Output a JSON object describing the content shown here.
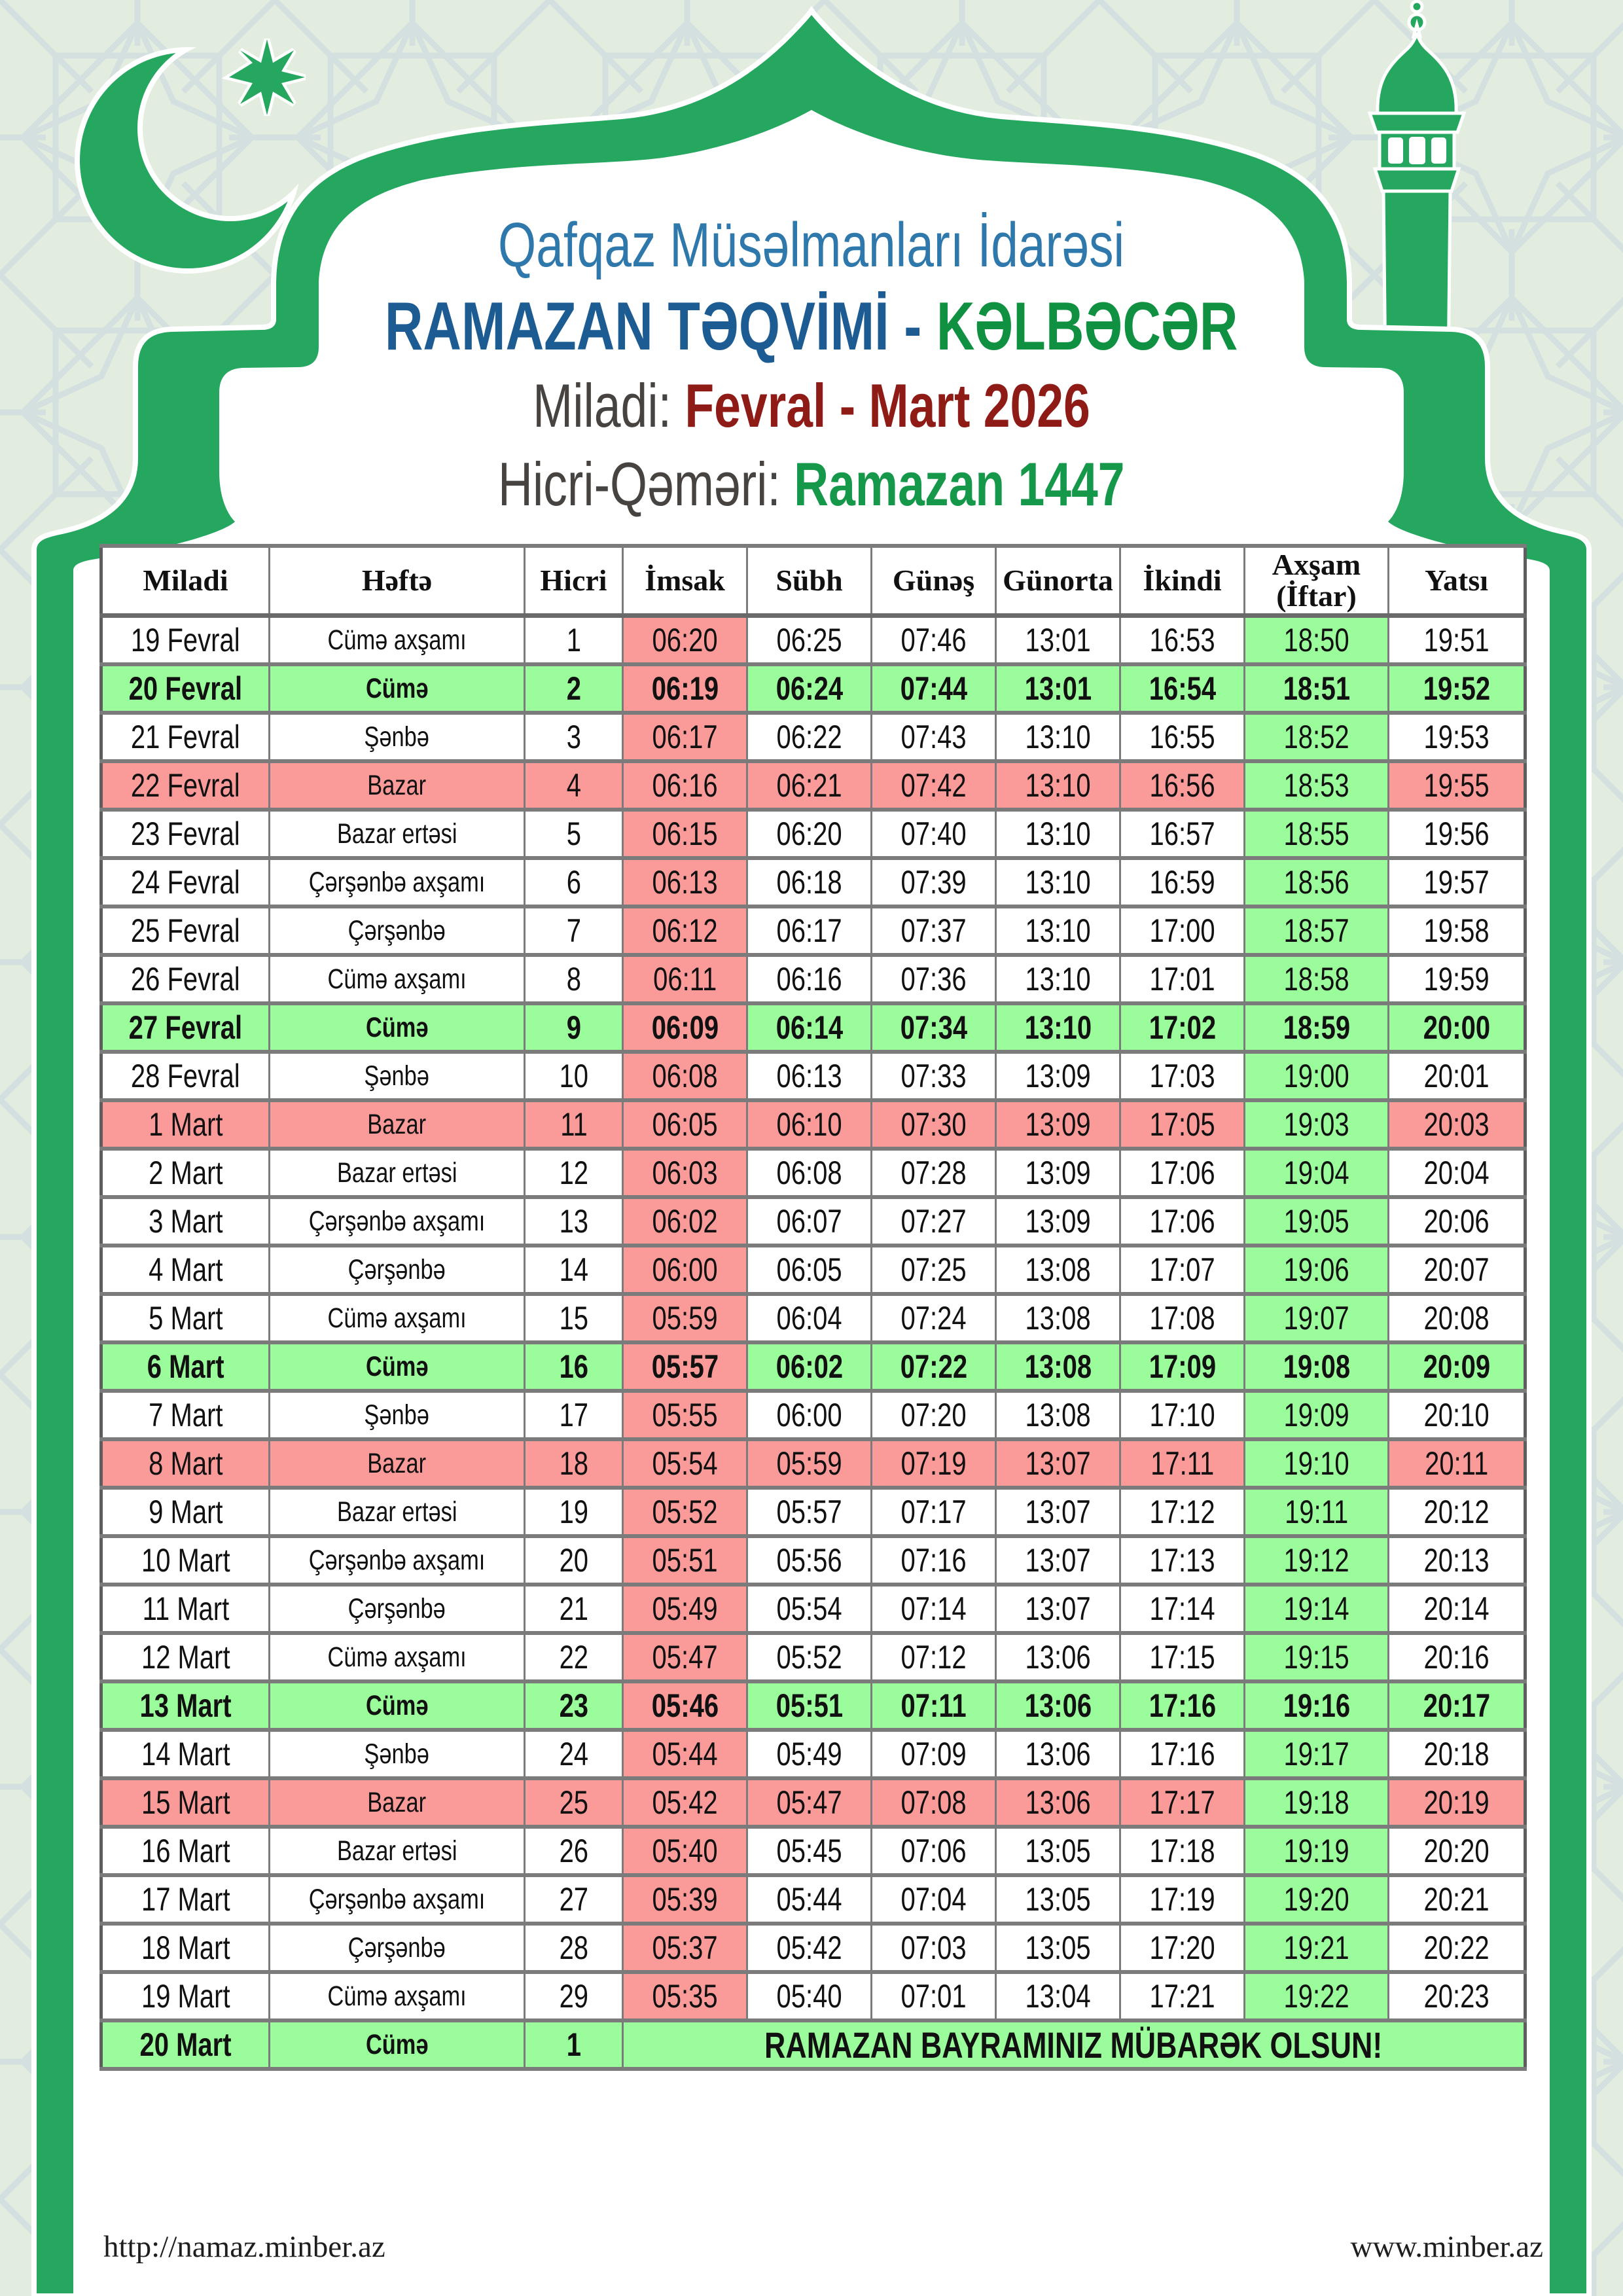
{
  "header": {
    "organization": "Qafqaz Müsəlmanları İdarəsi",
    "title_main": "RAMAZAN TƏQVİMİ -",
    "title_location": "KƏLBƏCƏR",
    "miladi_label": "Miladi:",
    "miladi_value": "Fevral - Mart 2026",
    "hicri_label": "Hicri-Qəməri:",
    "hicri_value": "Ramazan 1447"
  },
  "table": {
    "columns": [
      "Miladi",
      "Həftə",
      "Hicri",
      "İmsak",
      "Sübh",
      "Günəş",
      "Günorta",
      "İkindi",
      "Axşam\n(İftar)",
      "Yatsı"
    ],
    "rows": [
      {
        "miladi": "19 Fevral",
        "hefte": "Cümə axşamı",
        "hicri": "1",
        "times": [
          "06:20",
          "06:25",
          "07:46",
          "13:01",
          "16:53",
          "18:50",
          "19:51"
        ],
        "highlight": "none"
      },
      {
        "miladi": "20 Fevral",
        "hefte": "Cümə",
        "hicri": "2",
        "times": [
          "06:19",
          "06:24",
          "07:44",
          "13:01",
          "16:54",
          "18:51",
          "19:52"
        ],
        "highlight": "friday"
      },
      {
        "miladi": "21 Fevral",
        "hefte": "Şənbə",
        "hicri": "3",
        "times": [
          "06:17",
          "06:22",
          "07:43",
          "13:10",
          "16:55",
          "18:52",
          "19:53"
        ],
        "highlight": "none"
      },
      {
        "miladi": "22 Fevral",
        "hefte": "Bazar",
        "hicri": "4",
        "times": [
          "06:16",
          "06:21",
          "07:42",
          "13:10",
          "16:56",
          "18:53",
          "19:55"
        ],
        "highlight": "sunday"
      },
      {
        "miladi": "23 Fevral",
        "hefte": "Bazar ertəsi",
        "hicri": "5",
        "times": [
          "06:15",
          "06:20",
          "07:40",
          "13:10",
          "16:57",
          "18:55",
          "19:56"
        ],
        "highlight": "none"
      },
      {
        "miladi": "24 Fevral",
        "hefte": "Çərşənbə axşamı",
        "hicri": "6",
        "times": [
          "06:13",
          "06:18",
          "07:39",
          "13:10",
          "16:59",
          "18:56",
          "19:57"
        ],
        "highlight": "none"
      },
      {
        "miladi": "25 Fevral",
        "hefte": "Çərşənbə",
        "hicri": "7",
        "times": [
          "06:12",
          "06:17",
          "07:37",
          "13:10",
          "17:00",
          "18:57",
          "19:58"
        ],
        "highlight": "none"
      },
      {
        "miladi": "26 Fevral",
        "hefte": "Cümə axşamı",
        "hicri": "8",
        "times": [
          "06:11",
          "06:16",
          "07:36",
          "13:10",
          "17:01",
          "18:58",
          "19:59"
        ],
        "highlight": "none"
      },
      {
        "miladi": "27 Fevral",
        "hefte": "Cümə",
        "hicri": "9",
        "times": [
          "06:09",
          "06:14",
          "07:34",
          "13:10",
          "17:02",
          "18:59",
          "20:00"
        ],
        "highlight": "friday"
      },
      {
        "miladi": "28 Fevral",
        "hefte": "Şənbə",
        "hicri": "10",
        "times": [
          "06:08",
          "06:13",
          "07:33",
          "13:09",
          "17:03",
          "19:00",
          "20:01"
        ],
        "highlight": "none"
      },
      {
        "miladi": "1 Mart",
        "hefte": "Bazar",
        "hicri": "11",
        "times": [
          "06:05",
          "06:10",
          "07:30",
          "13:09",
          "17:05",
          "19:03",
          "20:03"
        ],
        "highlight": "sunday"
      },
      {
        "miladi": "2 Mart",
        "hefte": "Bazar ertəsi",
        "hicri": "12",
        "times": [
          "06:03",
          "06:08",
          "07:28",
          "13:09",
          "17:06",
          "19:04",
          "20:04"
        ],
        "highlight": "none"
      },
      {
        "miladi": "3 Mart",
        "hefte": "Çərşənbə axşamı",
        "hicri": "13",
        "times": [
          "06:02",
          "06:07",
          "07:27",
          "13:09",
          "17:06",
          "19:05",
          "20:06"
        ],
        "highlight": "none"
      },
      {
        "miladi": "4 Mart",
        "hefte": "Çərşənbə",
        "hicri": "14",
        "times": [
          "06:00",
          "06:05",
          "07:25",
          "13:08",
          "17:07",
          "19:06",
          "20:07"
        ],
        "highlight": "none"
      },
      {
        "miladi": "5 Mart",
        "hefte": "Cümə axşamı",
        "hicri": "15",
        "times": [
          "05:59",
          "06:04",
          "07:24",
          "13:08",
          "17:08",
          "19:07",
          "20:08"
        ],
        "highlight": "none"
      },
      {
        "miladi": "6 Mart",
        "hefte": "Cümə",
        "hicri": "16",
        "times": [
          "05:57",
          "06:02",
          "07:22",
          "13:08",
          "17:09",
          "19:08",
          "20:09"
        ],
        "highlight": "friday"
      },
      {
        "miladi": "7 Mart",
        "hefte": "Şənbə",
        "hicri": "17",
        "times": [
          "05:55",
          "06:00",
          "07:20",
          "13:08",
          "17:10",
          "19:09",
          "20:10"
        ],
        "highlight": "none"
      },
      {
        "miladi": "8 Mart",
        "hefte": "Bazar",
        "hicri": "18",
        "times": [
          "05:54",
          "05:59",
          "07:19",
          "13:07",
          "17:11",
          "19:10",
          "20:11"
        ],
        "highlight": "sunday"
      },
      {
        "miladi": "9 Mart",
        "hefte": "Bazar ertəsi",
        "hicri": "19",
        "times": [
          "05:52",
          "05:57",
          "07:17",
          "13:07",
          "17:12",
          "19:11",
          "20:12"
        ],
        "highlight": "none"
      },
      {
        "miladi": "10 Mart",
        "hefte": "Çərşənbə axşamı",
        "hicri": "20",
        "times": [
          "05:51",
          "05:56",
          "07:16",
          "13:07",
          "17:13",
          "19:12",
          "20:13"
        ],
        "highlight": "none"
      },
      {
        "miladi": "11 Mart",
        "hefte": "Çərşənbə",
        "hicri": "21",
        "times": [
          "05:49",
          "05:54",
          "07:14",
          "13:07",
          "17:14",
          "19:14",
          "20:14"
        ],
        "highlight": "none"
      },
      {
        "miladi": "12 Mart",
        "hefte": "Cümə axşamı",
        "hicri": "22",
        "times": [
          "05:47",
          "05:52",
          "07:12",
          "13:06",
          "17:15",
          "19:15",
          "20:16"
        ],
        "highlight": "none"
      },
      {
        "miladi": "13 Mart",
        "hefte": "Cümə",
        "hicri": "23",
        "times": [
          "05:46",
          "05:51",
          "07:11",
          "13:06",
          "17:16",
          "19:16",
          "20:17"
        ],
        "highlight": "friday"
      },
      {
        "miladi": "14 Mart",
        "hefte": "Şənbə",
        "hicri": "24",
        "times": [
          "05:44",
          "05:49",
          "07:09",
          "13:06",
          "17:16",
          "19:17",
          "20:18"
        ],
        "highlight": "none"
      },
      {
        "miladi": "15 Mart",
        "hefte": "Bazar",
        "hicri": "25",
        "times": [
          "05:42",
          "05:47",
          "07:08",
          "13:06",
          "17:17",
          "19:18",
          "20:19"
        ],
        "highlight": "sunday"
      },
      {
        "miladi": "16 Mart",
        "hefte": "Bazar ertəsi",
        "hicri": "26",
        "times": [
          "05:40",
          "05:45",
          "07:06",
          "13:05",
          "17:18",
          "19:19",
          "20:20"
        ],
        "highlight": "none"
      },
      {
        "miladi": "17 Mart",
        "hefte": "Çərşənbə axşamı",
        "hicri": "27",
        "times": [
          "05:39",
          "05:44",
          "07:04",
          "13:05",
          "17:19",
          "19:20",
          "20:21"
        ],
        "highlight": "none"
      },
      {
        "miladi": "18 Mart",
        "hefte": "Çərşənbə",
        "hicri": "28",
        "times": [
          "05:37",
          "05:42",
          "07:03",
          "13:05",
          "17:20",
          "19:21",
          "20:22"
        ],
        "highlight": "none"
      },
      {
        "miladi": "19 Mart",
        "hefte": "Cümə axşamı",
        "hicri": "29",
        "times": [
          "05:35",
          "05:40",
          "07:01",
          "13:04",
          "17:21",
          "19:22",
          "20:23"
        ],
        "highlight": "none"
      }
    ],
    "eid_row": {
      "miladi": "20 Mart",
      "hefte": "Cümə",
      "hicri": "1",
      "message": "RAMAZAN BAYRAMINIZ MÜBARƏK OLSUN!",
      "highlight": "friday"
    }
  },
  "footer": {
    "left": "http://namaz.minber.az",
    "right": "www.minber.az"
  },
  "colors": {
    "brand_green": "#25a75f",
    "page_bg": "#e2ecdf",
    "pattern_line": "#ccd8de",
    "row_green": "#9afc9a",
    "row_pink": "#fa9b99",
    "title_blue_light": "#2e78ab",
    "title_blue_dark": "#1d5c92",
    "title_green": "#0f9141",
    "title_red": "#8e1b15",
    "label_gray": "#474341",
    "value_green": "#15984a",
    "grid_gray": "#7b7b7b"
  }
}
